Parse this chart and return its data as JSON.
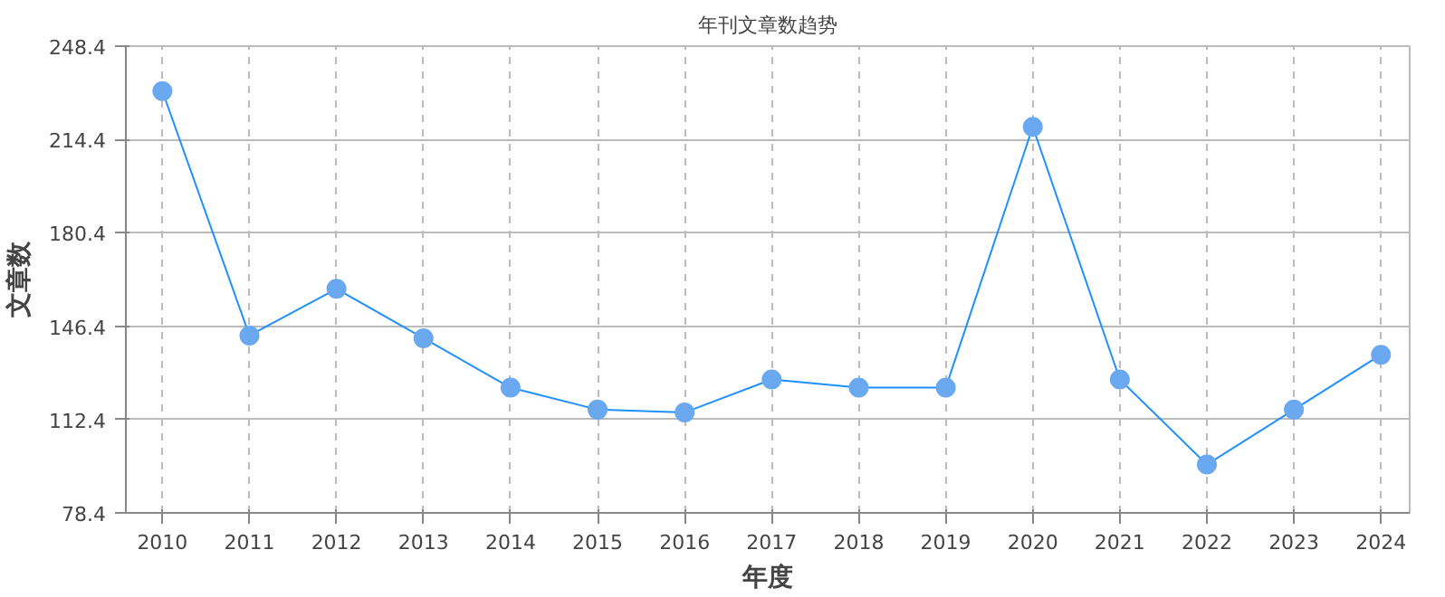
{
  "chart_data": {
    "type": "line",
    "title": "年刊文章数趋势",
    "xlabel": "年度",
    "ylabel": "文章数",
    "x": [
      2010,
      2011,
      2012,
      2013,
      2014,
      2015,
      2016,
      2017,
      2018,
      2019,
      2020,
      2021,
      2022,
      2023,
      2024
    ],
    "series": [
      {
        "color": "#1e90ff",
        "values": [
          232,
          143,
          160,
          142,
          124,
          116,
          115,
          127,
          124,
          124,
          219,
          127,
          96,
          116,
          136
        ]
      }
    ],
    "xlim": [
      2009.58,
      2024.33
    ],
    "xticks": [
      2010,
      2011,
      2012,
      2013,
      2014,
      2015,
      2016,
      2017,
      2018,
      2019,
      2020,
      2021,
      2022,
      2023,
      2024
    ],
    "ylim": [
      78.4,
      248.4
    ],
    "yticks": [
      78.4,
      112.4,
      146.4,
      180.4,
      214.4,
      248.4
    ],
    "grid": true,
    "marker": "circle",
    "line_style": "solid"
  }
}
